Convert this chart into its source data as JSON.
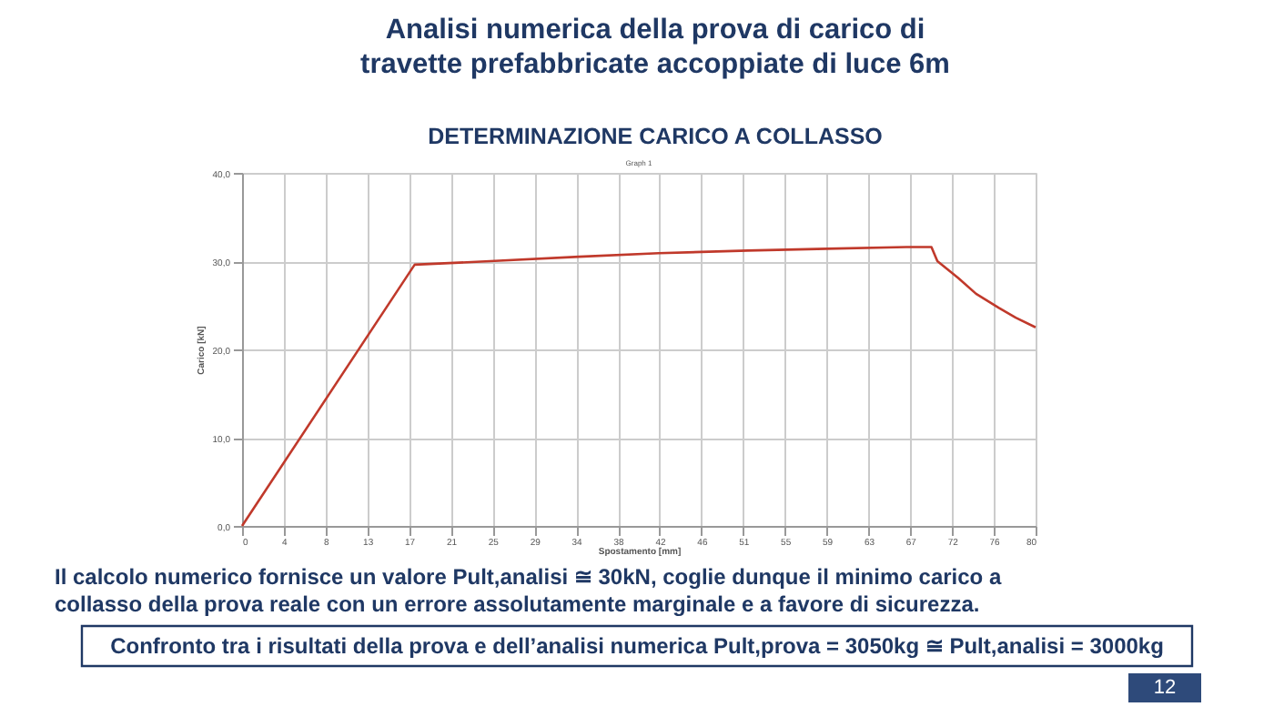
{
  "chart_data": {
    "type": "line",
    "title": "Analisi numerica della prova di carico di\ntravette prefabbricate accoppiate di luce 6m",
    "subtitle": "DETERMINAZIONE CARICO A COLLASSO",
    "xlabel": "Spostamento [mm]",
    "ylabel": "Carico [kN]",
    "x": [
      0,
      17.4,
      25,
      34,
      42,
      51,
      59,
      67,
      69.5,
      70.1,
      72.2,
      74,
      76.3,
      78,
      80
    ],
    "series": [
      {
        "color": "#c0392b",
        "values": [
          0,
          29.6,
          30.0,
          30.5,
          30.9,
          31.2,
          31.4,
          31.6,
          31.6,
          30.0,
          28.1,
          26.3,
          24.7,
          23.6,
          22.5
        ]
      }
    ],
    "xlim": [
      0,
      80
    ],
    "ylim": [
      0,
      40
    ],
    "xticks": [
      {
        "value": 0,
        "label": "0"
      },
      {
        "value": 4.21,
        "label": "4"
      },
      {
        "value": 8.42,
        "label": "8"
      },
      {
        "value": 12.63,
        "label": "13"
      },
      {
        "value": 16.84,
        "label": "17"
      },
      {
        "value": 21.05,
        "label": "21"
      },
      {
        "value": 25.26,
        "label": "25"
      },
      {
        "value": 29.47,
        "label": "29"
      },
      {
        "value": 33.68,
        "label": "34"
      },
      {
        "value": 37.89,
        "label": "38"
      },
      {
        "value": 42.11,
        "label": "42"
      },
      {
        "value": 46.32,
        "label": "46"
      },
      {
        "value": 50.53,
        "label": "51"
      },
      {
        "value": 54.74,
        "label": "55"
      },
      {
        "value": 58.95,
        "label": "59"
      },
      {
        "value": 63.16,
        "label": "63"
      },
      {
        "value": 67.37,
        "label": "67"
      },
      {
        "value": 71.58,
        "label": "72"
      },
      {
        "value": 75.79,
        "label": "76"
      },
      {
        "value": 80,
        "label": "80"
      }
    ],
    "yticks": [
      {
        "value": 0,
        "label": "0,0"
      },
      {
        "value": 10,
        "label": "10,0"
      },
      {
        "value": 20,
        "label": "20,0"
      },
      {
        "value": 30,
        "label": "30,0"
      },
      {
        "value": 40,
        "label": "40,0"
      }
    ],
    "grid": true,
    "marker": "none",
    "line_style": "solid",
    "legend": false,
    "annotations": [
      "Graph 1",
      "Il calcolo numerico fornisce un valore Pult,analisi ≅ 30kN, coglie dunque il minimo carico a\ncollasso della prova reale con un errore assolutamente marginale e a favore di sicurezza.",
      "Confronto tra i risultati della prova e dell’analisi numerica Pult,prova = 3050kg ≅ Pult,analisi = 3000kg",
      "12"
    ]
  }
}
